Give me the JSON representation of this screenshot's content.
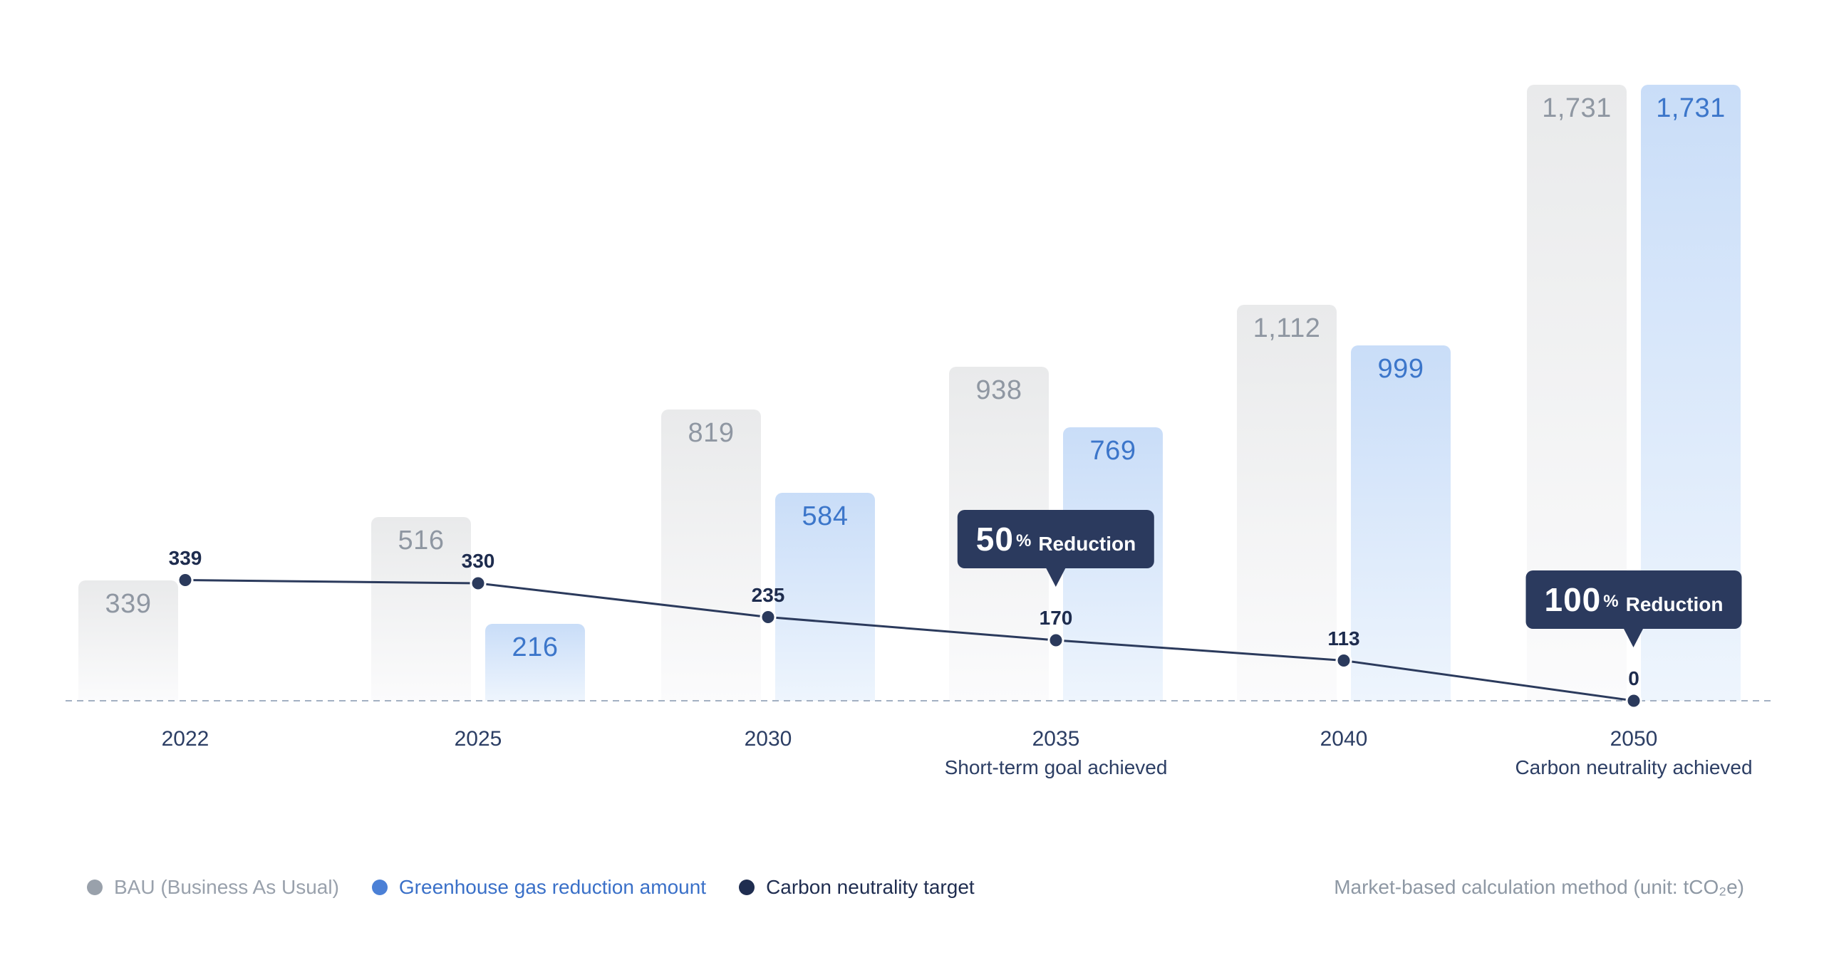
{
  "chart_data": {
    "type": "bar",
    "subtype": "grouped-bars-with-target-line",
    "title": "",
    "xlabel": "",
    "ylabel": "",
    "ylim": [
      0,
      1731
    ],
    "grid": false,
    "baseline_style": "dashed",
    "legend_position": "bottom-left",
    "categories": [
      "2022",
      "2025",
      "2030",
      "2035",
      "2040",
      "2050"
    ],
    "category_sublabels": [
      "",
      "",
      "",
      "Short-term goal achieved",
      "",
      "Carbon neutrality achieved"
    ],
    "series": [
      {
        "name": "BAU (Business As Usual)",
        "type": "bar",
        "values": [
          339,
          516,
          819,
          938,
          1112,
          1731
        ],
        "labels": [
          "339",
          "516",
          "819",
          "938",
          "1,112",
          "1,731"
        ]
      },
      {
        "name": "Greenhouse gas reduction amount",
        "type": "bar",
        "values": [
          null,
          216,
          584,
          769,
          999,
          1731
        ],
        "labels": [
          "",
          "216",
          "584",
          "769",
          "999",
          "1,731"
        ]
      },
      {
        "name": "Carbon neutrality target",
        "type": "line",
        "values": [
          339,
          330,
          235,
          170,
          113,
          0
        ],
        "labels": [
          "339",
          "330",
          "235",
          "170",
          "113",
          "0"
        ]
      }
    ],
    "annotations": [
      {
        "category": "2035",
        "big": "50",
        "pct": "%",
        "text": "Reduction"
      },
      {
        "category": "2050",
        "big": "100",
        "pct": "%",
        "text": "Reduction"
      }
    ],
    "colors": {
      "bau_bar_top": "#e9eaeb",
      "bau_bar_bottom": "#fbfbfc",
      "bau_label": "#8f97a2",
      "reduction_bar_top": "#c9ddf8",
      "reduction_bar_bottom": "#eef5fd",
      "reduction_label": "#3c76ca",
      "target_line": "#2b3a5c",
      "target_dot": "#2b3a5c",
      "target_value_label": "#1e2c4e",
      "axis_label": "#2c3e64",
      "tooltip_bg": "#2b3a5e",
      "tooltip_text": "#ffffff",
      "baseline_dash": "#a3b0c2"
    }
  },
  "legend": {
    "items": [
      {
        "label": "BAU (Business As Usual)",
        "dot_color": "#99a1ab",
        "text_color": "#99a1ac"
      },
      {
        "label": "Greenhouse gas reduction amount",
        "dot_color": "#4b80d6",
        "text_color": "#3a70c8"
      },
      {
        "label": "Carbon neutrality target",
        "dot_color": "#1f2d50",
        "text_color": "#1f2d50"
      }
    ]
  },
  "footer_note": "Market-based calculation method (unit: tCO₂e)"
}
